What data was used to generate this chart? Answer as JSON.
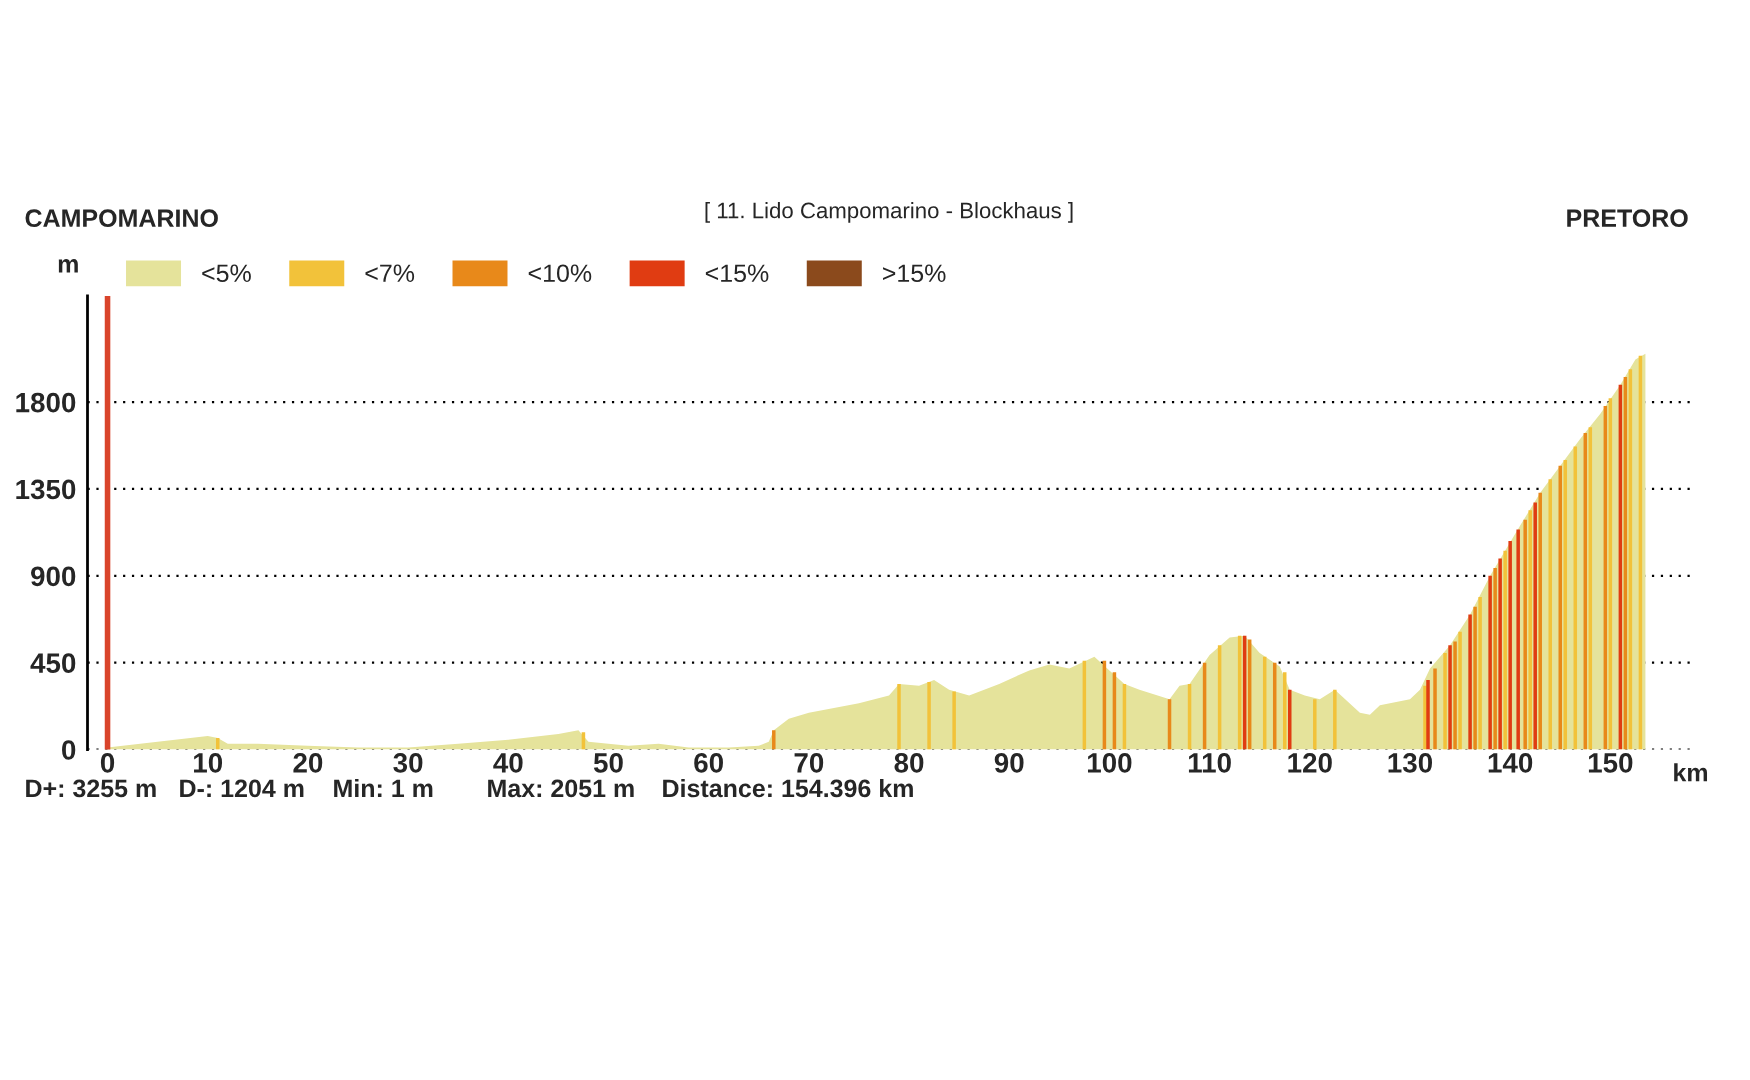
{
  "chart_data": {
    "type": "area",
    "title": "[ 11. Lido Campomarino - Blockhaus ]",
    "xlabel": "km",
    "ylabel": "m",
    "annotations": [
      "CAMPOMARINO",
      "PRETORO",
      "D+: 3255 m",
      "D-: 1204 m",
      "Min: 1 m",
      "Max: 2051 m",
      "Distance: 154.396 km"
    ],
    "xlim": [
      -2,
      158
    ],
    "ylim": [
      0,
      2350
    ],
    "xticks": [
      0,
      10,
      20,
      30,
      40,
      50,
      60,
      70,
      80,
      90,
      100,
      110,
      120,
      130,
      140,
      150
    ],
    "yticks": [
      0,
      450,
      900,
      1350,
      1800
    ],
    "grid": "y",
    "legend": "top left",
    "ref_lines": [
      {
        "axis": "x",
        "value": 0,
        "color": "#d9442b"
      }
    ],
    "series": [
      {
        "name": "<5%",
        "color": "#e5e39b",
        "x": [
          0,
          5,
          10,
          11,
          12,
          15,
          20,
          25,
          30,
          35,
          40,
          45,
          47,
          48,
          52,
          55,
          58,
          62,
          65,
          66,
          66.5,
          68,
          70,
          75,
          78,
          79,
          81,
          82.5,
          84,
          86,
          89,
          92,
          94,
          96,
          98.5,
          100,
          101.5,
          103,
          106,
          107,
          108,
          110,
          112,
          113.5,
          115,
          117,
          118,
          119.5,
          121,
          122.5,
          125,
          126,
          127,
          130,
          131,
          132,
          134,
          136,
          138,
          141,
          143,
          145,
          147,
          149,
          151,
          152.5,
          153.5
        ],
        "values": [
          10,
          40,
          70,
          60,
          30,
          30,
          20,
          10,
          10,
          30,
          50,
          80,
          100,
          40,
          20,
          30,
          10,
          10,
          20,
          40,
          100,
          160,
          190,
          240,
          280,
          340,
          330,
          360,
          310,
          280,
          340,
          410,
          440,
          420,
          480,
          410,
          340,
          310,
          260,
          330,
          340,
          490,
          580,
          590,
          500,
          430,
          310,
          280,
          260,
          310,
          190,
          180,
          230,
          260,
          310,
          420,
          540,
          700,
          900,
          1160,
          1330,
          1470,
          1610,
          1740,
          1890,
          2020,
          2050
        ]
      },
      {
        "name": "<7%",
        "color": "#f2c23a",
        "type": "bar",
        "x": [
          11,
          47.5,
          79,
          82,
          84.5,
          97.5,
          101.5,
          108,
          111,
          113,
          115.5,
          117.5,
          120.5,
          122.5,
          131.5,
          133.5,
          135,
          137,
          139.5,
          142,
          144,
          145.5,
          146.5,
          148,
          150,
          152,
          153
        ],
        "values": [
          60,
          90,
          340,
          350,
          300,
          460,
          340,
          340,
          540,
          590,
          480,
          400,
          260,
          310,
          330,
          500,
          610,
          790,
          1030,
          1240,
          1400,
          1500,
          1570,
          1670,
          1820,
          1970,
          2040
        ]
      },
      {
        "name": "<10%",
        "color": "#e8891a",
        "type": "bar",
        "x": [
          66.5,
          99.5,
          100.5,
          106,
          109.5,
          114,
          116.5,
          132.5,
          134.5,
          136.5,
          138.5,
          141.5,
          143,
          145,
          147.5,
          149.5,
          151.5
        ],
        "values": [
          100,
          460,
          400,
          260,
          450,
          570,
          450,
          420,
          560,
          740,
          940,
          1190,
          1330,
          1470,
          1640,
          1780,
          1930
        ]
      },
      {
        "name": "<15%",
        "color": "#e03c12",
        "type": "bar",
        "x": [
          113.5,
          118,
          131.8,
          134,
          136,
          138,
          139,
          140,
          140.8,
          142.5,
          151
        ],
        "values": [
          590,
          310,
          360,
          540,
          700,
          900,
          990,
          1080,
          1140,
          1280,
          1890
        ]
      },
      {
        "name": ">15%",
        "color": "#8b4a1c",
        "type": "bar"
      }
    ]
  }
}
